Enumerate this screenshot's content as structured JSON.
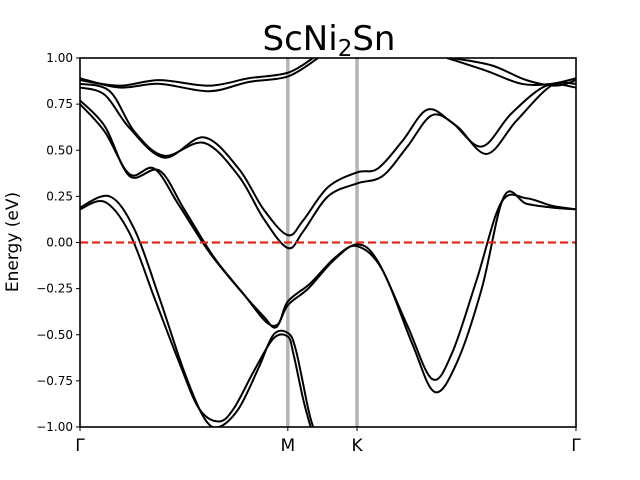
{
  "chart_data": {
    "type": "line",
    "title": {
      "main": "ScNi",
      "sub": "2",
      "tail": "Sn"
    },
    "ylabel": "Energy (eV)",
    "xlabel": "",
    "ylim": [
      -1.0,
      1.0
    ],
    "xlim": [
      0,
      1
    ],
    "grid": false,
    "yticks": [
      -1.0,
      -0.75,
      -0.5,
      -0.25,
      0.0,
      0.25,
      0.5,
      0.75,
      1.0
    ],
    "ytick_labels": [
      "−1.00",
      "−0.75",
      "−0.50",
      "−0.25",
      "0.00",
      "0.25",
      "0.50",
      "0.75",
      "1.00"
    ],
    "high_symmetry_points": [
      {
        "label": "Γ",
        "x": 0.0
      },
      {
        "label": "M",
        "x": 0.419
      },
      {
        "label": "K",
        "x": 0.5585
      },
      {
        "label": "Γ",
        "x": 1.0
      }
    ],
    "fermi_level": {
      "value": 0.0,
      "color": "#e8251d",
      "style": "dashed"
    },
    "vline_color": "#b5b5b5",
    "band_color": "#000000",
    "series": [
      {
        "values": [
          [
            0,
            0.18
          ],
          [
            0.05,
            0.22
          ],
          [
            0.1,
            0.05
          ],
          [
            0.15,
            -0.3
          ],
          [
            0.2,
            -0.65
          ],
          [
            0.24,
            -0.9
          ],
          [
            0.28,
            -0.97
          ],
          [
            0.31,
            -0.9
          ],
          [
            0.35,
            -0.7
          ],
          [
            0.39,
            -0.52
          ],
          [
            0.419,
            -0.51
          ],
          [
            0.43,
            -0.6
          ],
          [
            0.45,
            -0.85
          ],
          [
            0.465,
            -1.0
          ]
        ]
      },
      {
        "values": [
          [
            0,
            0.19
          ],
          [
            0.06,
            0.25
          ],
          [
            0.11,
            0.07
          ],
          [
            0.16,
            -0.3
          ],
          [
            0.21,
            -0.7
          ],
          [
            0.25,
            -0.95
          ],
          [
            0.28,
            -1.0
          ],
          [
            0.32,
            -0.9
          ],
          [
            0.36,
            -0.68
          ],
          [
            0.39,
            -0.5
          ],
          [
            0.419,
            -0.49
          ],
          [
            0.435,
            -0.58
          ],
          [
            0.46,
            -0.9
          ],
          [
            0.47,
            -1.0
          ]
        ]
      },
      {
        "values": [
          [
            0,
            0.75
          ],
          [
            0.05,
            0.6
          ],
          [
            0.1,
            0.37
          ],
          [
            0.15,
            0.4
          ],
          [
            0.2,
            0.2
          ],
          [
            0.26,
            -0.05
          ],
          [
            0.32,
            -0.25
          ],
          [
            0.37,
            -0.4
          ],
          [
            0.395,
            -0.46
          ],
          [
            0.419,
            -0.34
          ],
          [
            0.46,
            -0.25
          ],
          [
            0.51,
            -0.1
          ],
          [
            0.5585,
            -0.01
          ],
          [
            0.6,
            -0.1
          ],
          [
            0.66,
            -0.45
          ],
          [
            0.71,
            -0.74
          ],
          [
            0.75,
            -0.6
          ],
          [
            0.8,
            -0.2
          ],
          [
            0.85,
            0.22
          ],
          [
            0.9,
            0.24
          ],
          [
            0.95,
            0.2
          ],
          [
            1,
            0.18
          ]
        ]
      },
      {
        "values": [
          [
            0,
            0.77
          ],
          [
            0.05,
            0.63
          ],
          [
            0.1,
            0.36
          ],
          [
            0.16,
            0.39
          ],
          [
            0.21,
            0.18
          ],
          [
            0.27,
            -0.08
          ],
          [
            0.33,
            -0.28
          ],
          [
            0.375,
            -0.43
          ],
          [
            0.4,
            -0.44
          ],
          [
            0.419,
            -0.32
          ],
          [
            0.465,
            -0.22
          ],
          [
            0.515,
            -0.08
          ],
          [
            0.5585,
            -0.02
          ],
          [
            0.61,
            -0.15
          ],
          [
            0.67,
            -0.55
          ],
          [
            0.715,
            -0.81
          ],
          [
            0.76,
            -0.65
          ],
          [
            0.81,
            -0.25
          ],
          [
            0.855,
            0.25
          ],
          [
            0.9,
            0.21
          ],
          [
            0.95,
            0.19
          ],
          [
            1,
            0.18
          ]
        ]
      },
      {
        "values": [
          [
            0,
            0.84
          ],
          [
            0.05,
            0.8
          ],
          [
            0.1,
            0.62
          ],
          [
            0.17,
            0.46
          ],
          [
            0.25,
            0.57
          ],
          [
            0.32,
            0.4
          ],
          [
            0.37,
            0.18
          ],
          [
            0.419,
            0.04
          ],
          [
            0.45,
            0.12
          ],
          [
            0.5,
            0.3
          ],
          [
            0.5585,
            0.38
          ],
          [
            0.6,
            0.4
          ],
          [
            0.65,
            0.55
          ],
          [
            0.7,
            0.72
          ],
          [
            0.75,
            0.65
          ],
          [
            0.81,
            0.52
          ],
          [
            0.87,
            0.7
          ],
          [
            0.94,
            0.85
          ],
          [
            1,
            0.84
          ]
        ]
      },
      {
        "values": [
          [
            0,
            0.86
          ],
          [
            0.06,
            0.82
          ],
          [
            0.11,
            0.6
          ],
          [
            0.17,
            0.47
          ],
          [
            0.25,
            0.54
          ],
          [
            0.32,
            0.36
          ],
          [
            0.37,
            0.13
          ],
          [
            0.419,
            -0.03
          ],
          [
            0.45,
            0.06
          ],
          [
            0.5,
            0.25
          ],
          [
            0.5585,
            0.32
          ],
          [
            0.61,
            0.36
          ],
          [
            0.66,
            0.52
          ],
          [
            0.71,
            0.69
          ],
          [
            0.76,
            0.63
          ],
          [
            0.82,
            0.48
          ],
          [
            0.88,
            0.66
          ],
          [
            0.95,
            0.85
          ],
          [
            1,
            0.86
          ]
        ]
      },
      {
        "values": [
          [
            0,
            0.88
          ],
          [
            0.08,
            0.85
          ],
          [
            0.16,
            0.88
          ],
          [
            0.26,
            0.85
          ],
          [
            0.34,
            0.89
          ],
          [
            0.419,
            0.92
          ],
          [
            0.47,
            1.0
          ]
        ]
      },
      {
        "values": [
          [
            0,
            0.89
          ],
          [
            0.08,
            0.84
          ],
          [
            0.16,
            0.86
          ],
          [
            0.26,
            0.82
          ],
          [
            0.34,
            0.87
          ],
          [
            0.419,
            0.9
          ],
          [
            0.48,
            1.0
          ]
        ]
      },
      {
        "values": [
          [
            0.75,
            1.0
          ],
          [
            0.83,
            0.96
          ],
          [
            0.9,
            0.88
          ],
          [
            0.96,
            0.85
          ],
          [
            1,
            0.88
          ]
        ]
      },
      {
        "values": [
          [
            0.74,
            1.0
          ],
          [
            0.82,
            0.93
          ],
          [
            0.89,
            0.86
          ],
          [
            0.95,
            0.86
          ],
          [
            1,
            0.89
          ]
        ]
      }
    ]
  }
}
